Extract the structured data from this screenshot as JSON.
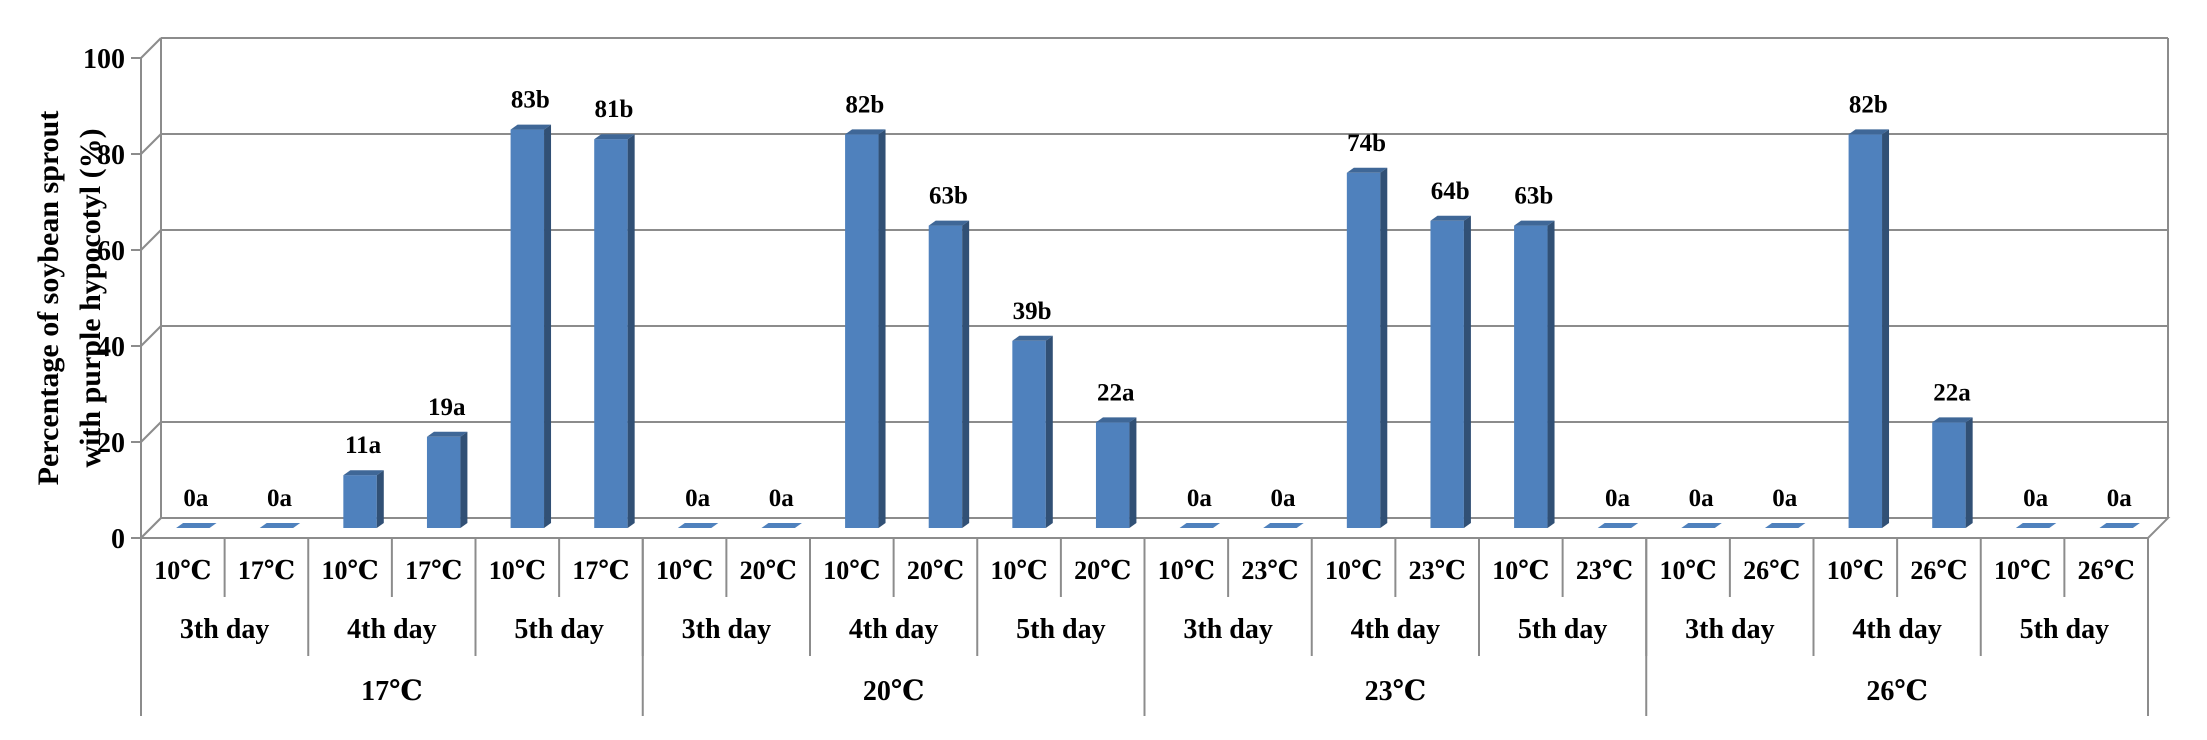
{
  "chart_data": {
    "type": "bar",
    "title": "",
    "ylabel_lines": [
      "Percentage of soybean sprout",
      "with purple hypocotyl (%)"
    ],
    "ylim": [
      0,
      100
    ],
    "yticks": [
      "0",
      "20",
      "40",
      "60",
      "80",
      "100"
    ],
    "grid": true,
    "bar_color": "#4F81BD",
    "groups": [
      {
        "label": "17℃",
        "days": [
          {
            "label": "3th day",
            "bars": [
              {
                "x": "10℃",
                "value": 0,
                "label": "0a"
              },
              {
                "x": "17℃",
                "value": 0,
                "label": "0a"
              }
            ]
          },
          {
            "label": "4th day",
            "bars": [
              {
                "x": "10℃",
                "value": 11,
                "label": "11a"
              },
              {
                "x": "17℃",
                "value": 19,
                "label": "19a"
              }
            ]
          },
          {
            "label": "5th day",
            "bars": [
              {
                "x": "10℃",
                "value": 83,
                "label": "83b"
              },
              {
                "x": "17℃",
                "value": 81,
                "label": "81b"
              }
            ]
          }
        ]
      },
      {
        "label": "20℃",
        "days": [
          {
            "label": "3th day",
            "bars": [
              {
                "x": "10℃",
                "value": 0,
                "label": "0a"
              },
              {
                "x": "20℃",
                "value": 0,
                "label": "0a"
              }
            ]
          },
          {
            "label": "4th day",
            "bars": [
              {
                "x": "10℃",
                "value": 82,
                "label": "82b"
              },
              {
                "x": "20℃",
                "value": 63,
                "label": "63b"
              }
            ]
          },
          {
            "label": "5th day",
            "bars": [
              {
                "x": "10℃",
                "value": 39,
                "label": "39b"
              },
              {
                "x": "20℃",
                "value": 22,
                "label": "22a"
              }
            ]
          }
        ]
      },
      {
        "label": "23℃",
        "days": [
          {
            "label": "3th day",
            "bars": [
              {
                "x": "10℃",
                "value": 0,
                "label": "0a"
              },
              {
                "x": "23℃",
                "value": 0,
                "label": "0a"
              }
            ]
          },
          {
            "label": "4th day",
            "bars": [
              {
                "x": "10℃",
                "value": 74,
                "label": "74b"
              },
              {
                "x": "23℃",
                "value": 64,
                "label": "64b"
              }
            ]
          },
          {
            "label": "5th day",
            "bars": [
              {
                "x": "10℃",
                "value": 63,
                "label": "63b"
              },
              {
                "x": "23℃",
                "value": 0,
                "label": "0a"
              }
            ]
          }
        ]
      },
      {
        "label": "26℃",
        "days": [
          {
            "label": "3th day",
            "bars": [
              {
                "x": "10℃",
                "value": 0,
                "label": "0a"
              },
              {
                "x": "26℃",
                "value": 0,
                "label": "0a"
              }
            ]
          },
          {
            "label": "4th day",
            "bars": [
              {
                "x": "10℃",
                "value": 82,
                "label": "82b"
              },
              {
                "x": "26℃",
                "value": 22,
                "label": "22a"
              }
            ]
          },
          {
            "label": "5th day",
            "bars": [
              {
                "x": "10℃",
                "value": 0,
                "label": "0a"
              },
              {
                "x": "26℃",
                "value": 0,
                "label": "0a"
              }
            ]
          }
        ]
      }
    ]
  }
}
